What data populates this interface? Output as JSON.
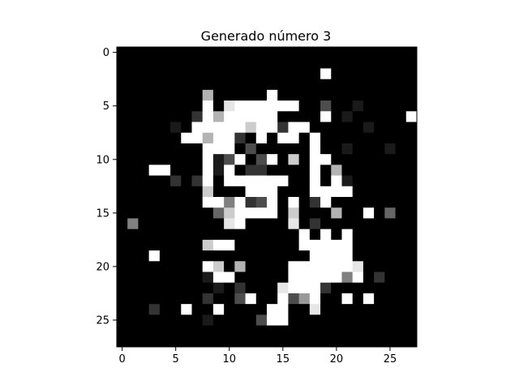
{
  "chart_data": {
    "type": "heatmap",
    "title": "Generado número 3",
    "xlabel": "",
    "ylabel": "",
    "colormap": "gray",
    "value_range": [
      0,
      1
    ],
    "xlim": [
      -0.5,
      27.5
    ],
    "ylim": [
      27.5,
      -0.5
    ],
    "xticks": [
      0,
      5,
      10,
      15,
      20,
      25
    ],
    "yticks": [
      0,
      5,
      10,
      15,
      20,
      25
    ],
    "xtick_labels": [
      "0",
      "5",
      "10",
      "15",
      "20",
      "25"
    ],
    "ytick_labels": [
      "0",
      "5",
      "10",
      "15",
      "20",
      "25"
    ],
    "grid": false,
    "pixels": [
      [
        0,
        0,
        0,
        0,
        0,
        0,
        0,
        0,
        0,
        0,
        0,
        0,
        0,
        0,
        0,
        0,
        0,
        0,
        0,
        0,
        0,
        0,
        0,
        0,
        0,
        0,
        0,
        0
      ],
      [
        0,
        0,
        0,
        0,
        0,
        0,
        0,
        0,
        0,
        0,
        0,
        0,
        0,
        0,
        0,
        0,
        0,
        0,
        0,
        0,
        0,
        0,
        0,
        0,
        0,
        0,
        0,
        0
      ],
      [
        0,
        0,
        0,
        0,
        0,
        0,
        0,
        0,
        0,
        0,
        0,
        0,
        0,
        0,
        0,
        0,
        0,
        0,
        0,
        1,
        0,
        0,
        0,
        0,
        0,
        0,
        0,
        0
      ],
      [
        0,
        0,
        0,
        0,
        0,
        0,
        0,
        0,
        0,
        0,
        0,
        0,
        0,
        0,
        0,
        0,
        0,
        0,
        0,
        0,
        0,
        0,
        0,
        0,
        0,
        0,
        0,
        0
      ],
      [
        0,
        0,
        0,
        0,
        0,
        0,
        0,
        0,
        0.7,
        0,
        0,
        0,
        0,
        0,
        1,
        0,
        0,
        0,
        0,
        0,
        0,
        0,
        0,
        0,
        0,
        0,
        0
      ],
      [
        0,
        0,
        0,
        0,
        0,
        0,
        0,
        0,
        1,
        0,
        0.9,
        1,
        1,
        1,
        1,
        1,
        1,
        0,
        0,
        0.3,
        0,
        0,
        0.1,
        0,
        0,
        0,
        0,
        0
      ],
      [
        0,
        0,
        0,
        0,
        0,
        0,
        0,
        0.2,
        1,
        0.7,
        1,
        1,
        1,
        1,
        1,
        0,
        0,
        0,
        0,
        1,
        0,
        0.1,
        0,
        0,
        0,
        0,
        0,
        1
      ],
      [
        0,
        0,
        0,
        0,
        0,
        0.1,
        0,
        1,
        1,
        1,
        1,
        1,
        0.8,
        1,
        1,
        0.2,
        1,
        1,
        0,
        0,
        0,
        0,
        0,
        0.1,
        0,
        0,
        0,
        0
      ],
      [
        0,
        0,
        0,
        0,
        0,
        0,
        1,
        1,
        0.7,
        1,
        1,
        0.2,
        0,
        1,
        0,
        1,
        1,
        0,
        1,
        0,
        0,
        0,
        0,
        0,
        0,
        0,
        0,
        0
      ],
      [
        0,
        0,
        0,
        0,
        0,
        0,
        0,
        0,
        1,
        1,
        1,
        0,
        0.3,
        0,
        0,
        0,
        0,
        0,
        1,
        0,
        0,
        0.1,
        0,
        0,
        0,
        0.1,
        0,
        0
      ],
      [
        0,
        0,
        0,
        0,
        0,
        0,
        0,
        0,
        1,
        0.1,
        0.3,
        1,
        0,
        0.3,
        1,
        0,
        0.8,
        0,
        1,
        1,
        0,
        0,
        0,
        0,
        0,
        0,
        0,
        0
      ],
      [
        0,
        0,
        0,
        1,
        1,
        0,
        0,
        0,
        1,
        0.1,
        1,
        0,
        0.2,
        0.2,
        0,
        0,
        0,
        0,
        1,
        0,
        0.7,
        0,
        0,
        0,
        0,
        0,
        0,
        0
      ],
      [
        0,
        0,
        0,
        0,
        0,
        0.2,
        0,
        0.2,
        1,
        0,
        1,
        1,
        1,
        1,
        1,
        1,
        0,
        0,
        1,
        0,
        1,
        0.1,
        0,
        0,
        0,
        0,
        0,
        0
      ],
      [
        0,
        0,
        0,
        0,
        0,
        0,
        0,
        0,
        0.8,
        0,
        0,
        0,
        1,
        1,
        1,
        0,
        0,
        0,
        1,
        1,
        1,
        1,
        0,
        0,
        0,
        0,
        0,
        0
      ],
      [
        0,
        0,
        0,
        0,
        0,
        0,
        0,
        0,
        1,
        1,
        0.5,
        1,
        0.2,
        0.3,
        1,
        0,
        1,
        0,
        0.2,
        1,
        0,
        0,
        0,
        0,
        0,
        0,
        0,
        0
      ],
      [
        0,
        0,
        0,
        0,
        0,
        0,
        0,
        0,
        0,
        0.4,
        0.8,
        1,
        1,
        1,
        1,
        0,
        0.8,
        0,
        0,
        0,
        0.7,
        0,
        0,
        1,
        0,
        0.4,
        0,
        0
      ],
      [
        0,
        0.5,
        0,
        0,
        0,
        0,
        0,
        0,
        0,
        0,
        0.9,
        1,
        0,
        0,
        0,
        0,
        0.9,
        0,
        0.2,
        0,
        0,
        0,
        0,
        0,
        0,
        0,
        0,
        0
      ],
      [
        0,
        0,
        0,
        0,
        0,
        0,
        0,
        0,
        0,
        0,
        0,
        0,
        0,
        0,
        0,
        0,
        0,
        1,
        0,
        1,
        0,
        1,
        0,
        0,
        0,
        0,
        0,
        0
      ],
      [
        0,
        0,
        0,
        0,
        0,
        0,
        0,
        0,
        0.8,
        1,
        1,
        0,
        0,
        0,
        0,
        0,
        0,
        1,
        1,
        1,
        1,
        1,
        0,
        0,
        0,
        0,
        0,
        0
      ],
      [
        0,
        0,
        0,
        1,
        0,
        0,
        0,
        0,
        0,
        0,
        0,
        0,
        0,
        0,
        0,
        0,
        0,
        0,
        1,
        1,
        1,
        1,
        0,
        0,
        0,
        0,
        0,
        0
      ],
      [
        0,
        0,
        0,
        0,
        0,
        0,
        0,
        0,
        1,
        0.8,
        0,
        0.7,
        0,
        0,
        0,
        0,
        1,
        1,
        1,
        1,
        1,
        1,
        0.9,
        0,
        0,
        0,
        0,
        0
      ],
      [
        0,
        0,
        0,
        0,
        0,
        0,
        0,
        0,
        0.1,
        1,
        1,
        0,
        0,
        0,
        0,
        0,
        1,
        1,
        1,
        1,
        1,
        0.5,
        1,
        0,
        0.2,
        0,
        0,
        0
      ],
      [
        0,
        0,
        0,
        0,
        0,
        0,
        0,
        0,
        0,
        0.1,
        0,
        0.2,
        0,
        0,
        0,
        0.9,
        1,
        1,
        1,
        0.2,
        0,
        0,
        0,
        0,
        0,
        0,
        0,
        0
      ],
      [
        0,
        0,
        0,
        0,
        0,
        0,
        0,
        0,
        0.2,
        0,
        0,
        0.3,
        1,
        0,
        0,
        1,
        0.3,
        0.6,
        1,
        0,
        0,
        1,
        0,
        1,
        0,
        0,
        0,
        0
      ],
      [
        0,
        0,
        0,
        0.2,
        0,
        0,
        1,
        0,
        0,
        1,
        0,
        0,
        0,
        0,
        1,
        1,
        0,
        0,
        0.9,
        0,
        0,
        0,
        0,
        0,
        0,
        0,
        0,
        0
      ],
      [
        0,
        0,
        0,
        0,
        0,
        0,
        0,
        0,
        0.1,
        0,
        0,
        0,
        0,
        0.3,
        1,
        1,
        0,
        0,
        0,
        0,
        0,
        0,
        0,
        0,
        0,
        0,
        0,
        0
      ],
      [
        0,
        0,
        0,
        0,
        0,
        0,
        0,
        0,
        0,
        0,
        0,
        0,
        0,
        0,
        0,
        0,
        0,
        0,
        0,
        0,
        0,
        0,
        0,
        0,
        0,
        0,
        0,
        0
      ],
      [
        0,
        0,
        0,
        0,
        0,
        0,
        0,
        0,
        0,
        0,
        0,
        0,
        0,
        0,
        0,
        0,
        0,
        0,
        0,
        0,
        0,
        0,
        0,
        0,
        0,
        0,
        0,
        0
      ]
    ]
  }
}
